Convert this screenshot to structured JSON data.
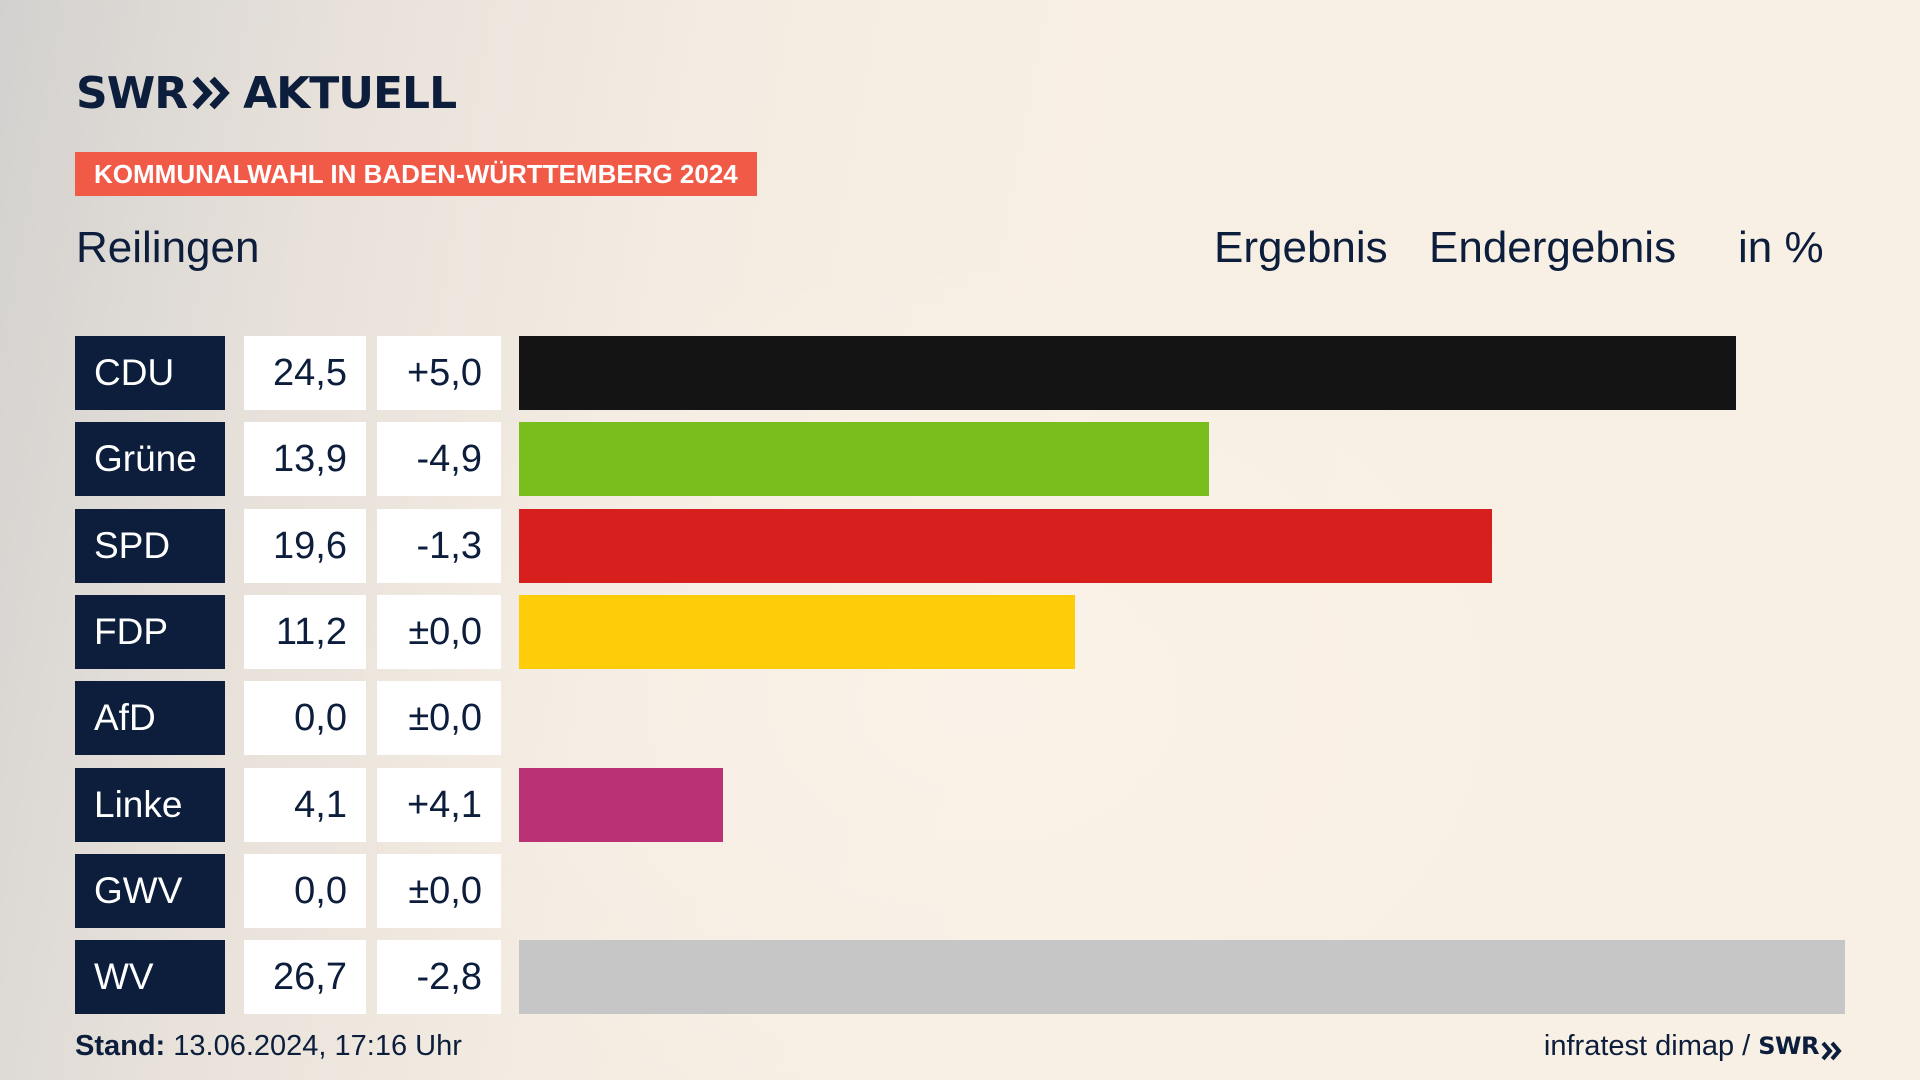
{
  "brand": {
    "logo_left": "SWR",
    "logo_right": "AKTUELL",
    "icon": "double-chevron-right-icon"
  },
  "banner": "KOMMUNALWAHL IN BADEN-WÜRTTEMBERG 2024",
  "place": "Reilingen",
  "headers": {
    "ergebnis": "Ergebnis",
    "endergebnis": "Endergebnis",
    "unit": "in %"
  },
  "footer": {
    "stand_label": "Stand:",
    "stand_value": "13.06.2024, 17:16 Uhr",
    "source": "infratest dimap /",
    "source_brand": "SWR"
  },
  "chart_data": {
    "type": "bar",
    "title": "",
    "xlabel": "",
    "ylabel": "",
    "ylim": [
      0,
      26.7
    ],
    "categories": [
      "CDU",
      "Grüne",
      "SPD",
      "FDP",
      "AfD",
      "Linke",
      "GWV",
      "WV"
    ],
    "values": [
      24.5,
      13.9,
      19.6,
      11.2,
      0.0,
      4.1,
      0.0,
      26.7
    ],
    "value_labels": [
      "24,5",
      "13,9",
      "19,6",
      "11,2",
      "0,0",
      "4,1",
      "0,0",
      "26,7"
    ],
    "diff_labels": [
      "+5,0",
      "-4,9",
      "-1,3",
      "±0,0",
      "±0,0",
      "+4,1",
      "±0,0",
      "-2,8"
    ],
    "diffs": [
      5.0,
      -4.9,
      -1.3,
      0.0,
      0.0,
      4.1,
      0.0,
      -2.8
    ],
    "colors": [
      "#141414",
      "#79bd1c",
      "#d71f1d",
      "#fdcd0a",
      "#009ee0",
      "#bb3175",
      "#8c8c8c",
      "#c6c6c6"
    ],
    "grid": false,
    "legend": "none"
  }
}
